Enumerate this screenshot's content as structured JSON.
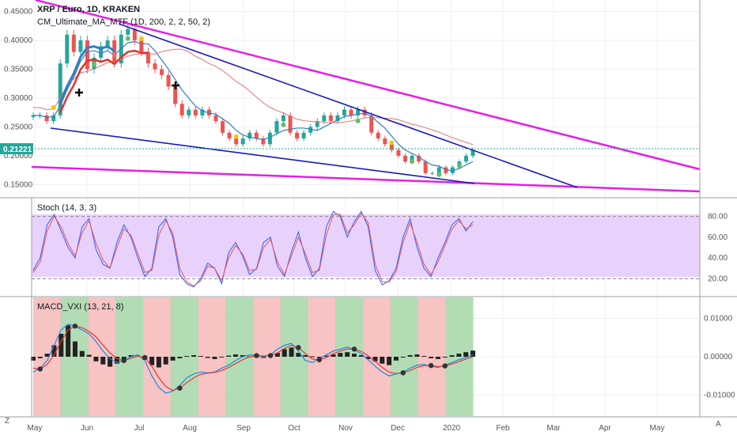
{
  "header": {
    "title": "XRP / Euro, 1D, KRAKEN",
    "indicator": "CM_Ultimate_MA_MTF (1D, 200, 2, 2, 50, 2)"
  },
  "price_label": "0.21221",
  "stoch_label": "Stoch (14, 3, 3)",
  "macd_label": "MACD_VXI (13, 21, 8)",
  "corner_left": "Z",
  "corner_right": "A",
  "colors": {
    "up": "#26a69a",
    "down": "#ef5350",
    "pink": "#e61ee6",
    "navy": "#1a1ab8",
    "ma_blue": "#2f7fc1",
    "ma_red": "#e0332a",
    "stoch_band": "#e6d0fb",
    "green_zone": "#a5d6a7",
    "red_zone": "#f6b9b9"
  },
  "chart_data": [
    {
      "type": "candlestick",
      "title": "XRP / Euro, 1D, KRAKEN",
      "x_ticks": [
        "May",
        "Jun",
        "Jul",
        "Aug",
        "Sep",
        "Oct",
        "Nov",
        "Dec",
        "2020",
        "Feb",
        "Mar",
        "Apr",
        "May"
      ],
      "y_ticks": [
        "0.45000",
        "0.40000",
        "0.35000",
        "0.30000",
        "0.25000",
        "0.20000",
        "0.15000"
      ],
      "ylim": [
        0.13,
        0.47
      ],
      "last_price": 0.21221,
      "close_series": [
        0.27,
        0.27,
        0.26,
        0.27,
        0.36,
        0.41,
        0.38,
        0.4,
        0.35,
        0.37,
        0.39,
        0.4,
        0.36,
        0.41,
        0.42,
        0.4,
        0.38,
        0.36,
        0.35,
        0.34,
        0.32,
        0.29,
        0.27,
        0.28,
        0.27,
        0.28,
        0.27,
        0.26,
        0.24,
        0.23,
        0.22,
        0.23,
        0.24,
        0.23,
        0.22,
        0.24,
        0.26,
        0.27,
        0.24,
        0.23,
        0.24,
        0.25,
        0.26,
        0.27,
        0.26,
        0.27,
        0.28,
        0.27,
        0.28,
        0.27,
        0.24,
        0.23,
        0.22,
        0.21,
        0.2,
        0.19,
        0.2,
        0.19,
        0.17,
        0.17,
        0.18,
        0.17,
        0.18,
        0.19,
        0.2,
        0.21
      ],
      "trendlines": "pink wedge and navy channel (two each)",
      "grid": true
    },
    {
      "type": "line",
      "title": "Stoch (14, 3, 3)",
      "y_ticks": [
        "80.00",
        "60.00",
        "40.00",
        "20.00"
      ],
      "ylim": [
        5,
        95
      ],
      "band": [
        20,
        80
      ],
      "k": [
        28,
        40,
        72,
        82,
        66,
        50,
        40,
        70,
        78,
        48,
        34,
        30,
        55,
        72,
        60,
        40,
        22,
        30,
        70,
        78,
        60,
        24,
        15,
        12,
        20,
        35,
        30,
        15,
        45,
        55,
        42,
        24,
        30,
        55,
        60,
        32,
        22,
        46,
        65,
        40,
        22,
        30,
        70,
        85,
        80,
        60,
        75,
        85,
        70,
        28,
        14,
        18,
        30,
        60,
        78,
        50,
        30,
        22,
        40,
        55,
        72,
        78,
        66,
        75
      ],
      "d": [
        26,
        36,
        66,
        80,
        70,
        54,
        42,
        64,
        76,
        54,
        38,
        30,
        50,
        68,
        62,
        44,
        26,
        28,
        62,
        76,
        64,
        30,
        17,
        13,
        18,
        32,
        30,
        18,
        40,
        52,
        44,
        28,
        29,
        50,
        58,
        36,
        24,
        42,
        60,
        44,
        26,
        28,
        62,
        82,
        82,
        64,
        72,
        83,
        74,
        34,
        17,
        17,
        27,
        55,
        74,
        55,
        34,
        24,
        36,
        52,
        68,
        76,
        68,
        72
      ]
    },
    {
      "type": "bar",
      "title": "MACD_VXI (13, 21, 8)",
      "y_ticks": [
        "0.01000",
        "0.00000",
        "-0.01000"
      ],
      "ylim": [
        -0.0155,
        0.0155
      ],
      "histogram": [
        -0.001,
        -0.0004,
        0.0008,
        0.003,
        0.006,
        0.0082,
        0.004,
        0.0015,
        0.0005,
        -0.0012,
        -0.002,
        -0.0026,
        -0.0018,
        -0.0006,
        0.0004,
        0.0002,
        -0.0008,
        -0.0022,
        -0.0028,
        -0.002,
        -0.001,
        -0.0004,
        0.0002,
        0.0004,
        0.0002,
        -0.0003,
        -0.0006,
        -0.0002,
        0.0003,
        0.0006,
        0.0004,
        0.0001,
        -0.0002,
        -0.0003,
        0.0002,
        0.001,
        0.002,
        0.0024,
        0.001,
        0.0004,
        0.0001,
        -0.0002,
        0.0003,
        0.0006,
        0.001,
        0.0012,
        0.0008,
        0.0004,
        -0.0006,
        -0.0012,
        -0.0018,
        -0.0022,
        -0.001,
        -0.0002,
        0.0004,
        0.0006,
        0.0002,
        -0.0004,
        -0.0006,
        -0.0002,
        0.0004,
        0.0008,
        0.0012,
        0.0016
      ],
      "macd": [
        -0.004,
        -0.003,
        -0.001,
        0.003,
        0.007,
        0.0085,
        0.008,
        0.007,
        0.006,
        0.004,
        0.0015,
        -0.0005,
        -0.0015,
        -0.001,
        0.0,
        0.0005,
        -0.001,
        -0.005,
        -0.008,
        -0.0095,
        -0.009,
        -0.0075,
        -0.0055,
        -0.0045,
        -0.004,
        -0.0042,
        -0.004,
        -0.003,
        -0.0022,
        -0.001,
        0.0,
        0.0005,
        0.0003,
        0.0,
        0.0005,
        0.002,
        0.003,
        0.0035,
        0.0015,
        -0.001,
        -0.0015,
        -0.0005,
        0.0005,
        0.0015,
        0.002,
        0.0025,
        0.0018,
        0.0008,
        -0.0008,
        -0.0025,
        -0.004,
        -0.005,
        -0.0045,
        -0.004,
        -0.003,
        -0.0022,
        -0.002,
        -0.0025,
        -0.0028,
        -0.0022,
        -0.0015,
        -0.0008,
        -0.0002,
        0.0005
      ],
      "signal": [
        -0.003,
        -0.0032,
        -0.002,
        0.0005,
        0.004,
        0.007,
        0.008,
        0.0076,
        0.0066,
        0.0052,
        0.003,
        0.001,
        -0.0005,
        -0.001,
        -0.0004,
        0.0002,
        -0.0002,
        -0.0025,
        -0.0055,
        -0.0078,
        -0.0088,
        -0.0082,
        -0.0068,
        -0.0055,
        -0.0046,
        -0.0043,
        -0.0041,
        -0.0036,
        -0.0028,
        -0.0018,
        -0.0008,
        0.0,
        0.0003,
        0.0002,
        0.0003,
        0.001,
        0.0022,
        0.003,
        0.0024,
        0.0008,
        -0.0006,
        -0.0008,
        -0.0002,
        0.0008,
        0.0015,
        0.002,
        0.002,
        0.0014,
        0.0002,
        -0.0012,
        -0.0028,
        -0.004,
        -0.0044,
        -0.0042,
        -0.0036,
        -0.0028,
        -0.0023,
        -0.0023,
        -0.0026,
        -0.0024,
        -0.0019,
        -0.0013,
        -0.0006,
        0.0
      ],
      "zones": [
        "red",
        "green",
        "red",
        "green",
        "red",
        "green",
        "red",
        "green",
        "red",
        "green",
        "red",
        "green",
        "red",
        "green",
        "red",
        "green"
      ]
    }
  ]
}
